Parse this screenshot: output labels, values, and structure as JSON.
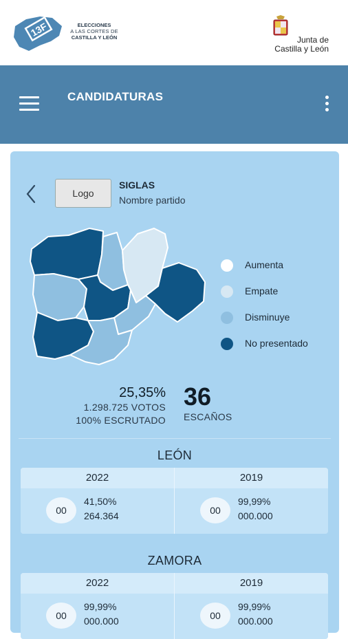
{
  "brand": {
    "badge": "13F",
    "line1": "ELECCIONES",
    "line2": "A LAS CORTES DE",
    "line3": "CASTILLA Y LEÓN",
    "junta_line1": "Junta de",
    "junta_line2": "Castilla y León"
  },
  "appbar": {
    "title": "CANDIDATURAS",
    "menu_icon": "hamburger-menu-icon",
    "more_icon": "vertical-dots-icon",
    "color": "#4d82aa"
  },
  "party": {
    "logo_label": "Logo",
    "siglas": "SIGLAS",
    "name": "Nombre partido"
  },
  "legend": [
    {
      "label": "Aumenta",
      "color": "#ffffff"
    },
    {
      "label": "Empate",
      "color": "#d7e8f3"
    },
    {
      "label": "Disminuye",
      "color": "#8fbfe0"
    },
    {
      "label": "No presentado",
      "color": "#0f5585"
    }
  ],
  "summary": {
    "percent": "25,35%",
    "votes": "1.298.725 VOTOS",
    "scrutinized": "100% ESCRUTADO",
    "seats": "36",
    "seats_label": "ESCAÑOS"
  },
  "provinces": [
    {
      "name": "LEÓN",
      "years": [
        {
          "year": "2022",
          "seats": "00",
          "pct": "41,50%",
          "votes": "264.364"
        },
        {
          "year": "2019",
          "seats": "00",
          "pct": "99,99%",
          "votes": "000.000"
        }
      ]
    },
    {
      "name": "ZAMORA",
      "years": [
        {
          "year": "2022",
          "seats": "00",
          "pct": "99,99%",
          "votes": "000.000"
        },
        {
          "year": "2019",
          "seats": "00",
          "pct": "99,99%",
          "votes": "000.000"
        }
      ]
    }
  ]
}
